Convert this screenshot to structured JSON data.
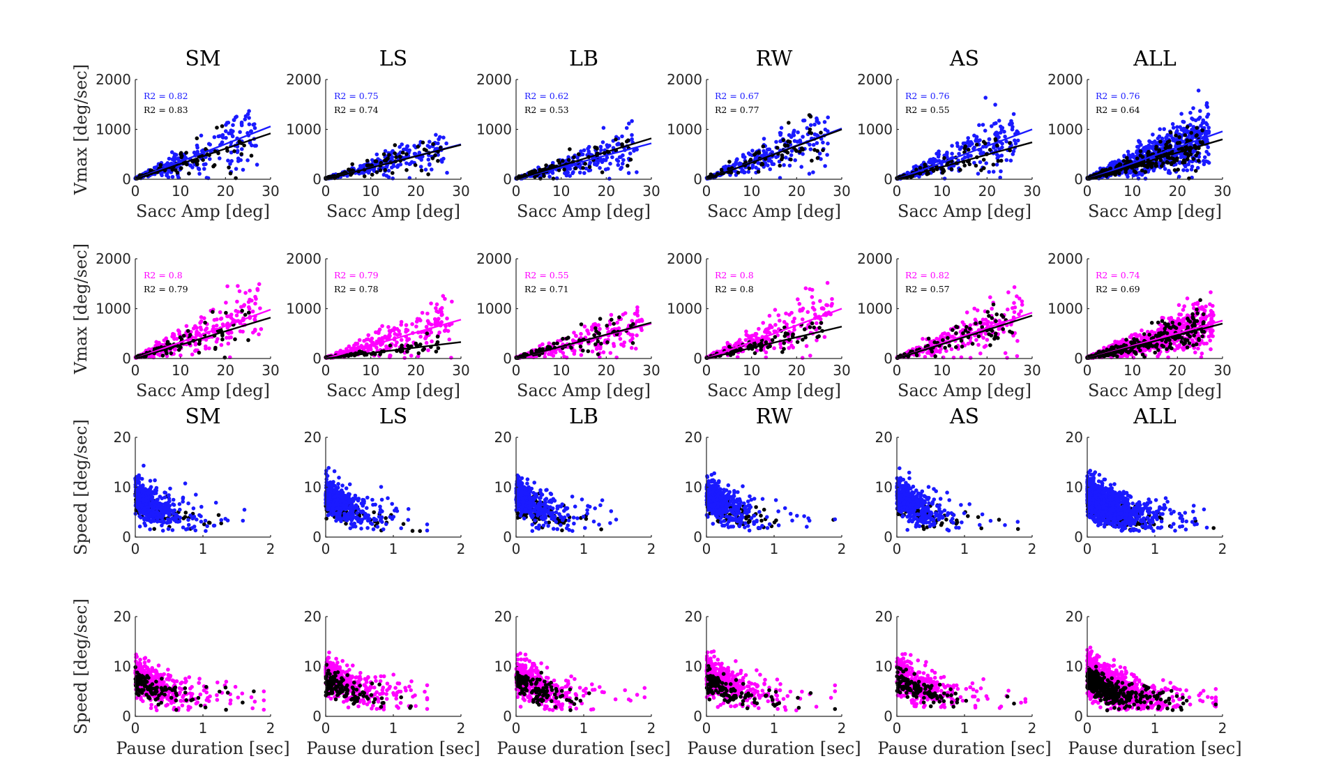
{
  "figure": {
    "columns": [
      "SM",
      "LS",
      "LB",
      "RW",
      "AS",
      "ALL"
    ],
    "colors": {
      "blue_series": "#1a1aff",
      "magenta_series": "#ff00ff",
      "black_series": "#000000"
    }
  },
  "chart_data": [
    {
      "type": "scatter",
      "row": 1,
      "xlabel": "Sacc Amp [deg]",
      "ylabel": "Vmax [deg/sec]",
      "xlim": [
        0,
        30
      ],
      "ylim": [
        0,
        2000
      ],
      "xticks": [
        "0",
        "10",
        "20",
        "30"
      ],
      "yticks": [
        "0",
        "1000",
        "2000"
      ],
      "color": "#1a1aff",
      "panels": [
        {
          "title": "SM",
          "r2_color": "R2 = 0.82",
          "r2_black": "R2 = 0.83",
          "fit_color": [
            30,
            1060
          ],
          "fit_black": [
            30,
            920
          ]
        },
        {
          "title": "LS",
          "r2_color": "R2 = 0.75",
          "r2_black": "R2 = 0.74",
          "fit_color": [
            30,
            700
          ],
          "fit_black": [
            30,
            690
          ]
        },
        {
          "title": "LB",
          "r2_color": "R2 = 0.62",
          "r2_black": "R2 = 0.53",
          "fit_color": [
            30,
            720
          ],
          "fit_black": [
            30,
            820
          ]
        },
        {
          "title": "RW",
          "r2_color": "R2 = 0.67",
          "r2_black": "R2 = 0.77",
          "fit_color": [
            30,
            1020
          ],
          "fit_black": [
            30,
            1000
          ]
        },
        {
          "title": "AS",
          "r2_color": "R2 = 0.76",
          "r2_black": "R2 = 0.55",
          "fit_color": [
            30,
            1000
          ],
          "fit_black": [
            30,
            740
          ]
        },
        {
          "title": "ALL",
          "r2_color": "R2 = 0.76",
          "r2_black": "R2 = 0.64",
          "fit_color": [
            30,
            960
          ],
          "fit_black": [
            30,
            800
          ]
        }
      ]
    },
    {
      "type": "scatter",
      "row": 2,
      "xlabel": "Sacc Amp [deg]",
      "ylabel": "Vmax [deg/sec]",
      "xlim": [
        0,
        30
      ],
      "ylim": [
        0,
        2000
      ],
      "xticks": [
        "0",
        "10",
        "20",
        "30"
      ],
      "yticks": [
        "0",
        "1000",
        "2000"
      ],
      "color": "#ff00ff",
      "panels": [
        {
          "title": "",
          "r2_color": "R2 = 0.8",
          "r2_black": "R2 = 0.79",
          "fit_color": [
            30,
            980
          ],
          "fit_black": [
            30,
            820
          ]
        },
        {
          "title": "",
          "r2_color": "R2 = 0.79",
          "r2_black": "R2 = 0.78",
          "fit_color": [
            30,
            780
          ],
          "fit_black": [
            30,
            330
          ]
        },
        {
          "title": "",
          "r2_color": "R2 = 0.55",
          "r2_black": "R2 = 0.71",
          "fit_color": [
            30,
            700
          ],
          "fit_black": [
            30,
            720
          ]
        },
        {
          "title": "",
          "r2_color": "R2 = 0.8",
          "r2_black": "R2 = 0.8",
          "fit_color": [
            30,
            1000
          ],
          "fit_black": [
            30,
            640
          ]
        },
        {
          "title": "",
          "r2_color": "R2 = 0.82",
          "r2_black": "R2 = 0.57",
          "fit_color": [
            30,
            920
          ],
          "fit_black": [
            30,
            860
          ]
        },
        {
          "title": "",
          "r2_color": "R2 = 0.74",
          "r2_black": "R2 = 0.69",
          "fit_color": [
            30,
            760
          ],
          "fit_black": [
            30,
            700
          ]
        }
      ]
    },
    {
      "type": "scatter",
      "row": 3,
      "xlabel": "",
      "ylabel": "Speed [deg/sec]",
      "xlim": [
        0,
        2
      ],
      "ylim": [
        0,
        20
      ],
      "xticks": [
        "0",
        "1",
        "2"
      ],
      "yticks": [
        "0",
        "10",
        "20"
      ],
      "color": "#1a1aff",
      "panels": [
        {
          "title": "SM"
        },
        {
          "title": "LS"
        },
        {
          "title": "LB"
        },
        {
          "title": "RW"
        },
        {
          "title": "AS"
        },
        {
          "title": "ALL"
        }
      ]
    },
    {
      "type": "scatter",
      "row": 4,
      "xlabel": "Pause duration [sec]",
      "ylabel": "Speed [deg/sec]",
      "xlim": [
        0,
        2
      ],
      "ylim": [
        0,
        20
      ],
      "xticks": [
        "0",
        "1",
        "2"
      ],
      "yticks": [
        "0",
        "10",
        "20"
      ],
      "color": "#ff00ff",
      "panels": [
        {
          "title": ""
        },
        {
          "title": ""
        },
        {
          "title": ""
        },
        {
          "title": ""
        },
        {
          "title": ""
        },
        {
          "title": ""
        }
      ]
    }
  ]
}
